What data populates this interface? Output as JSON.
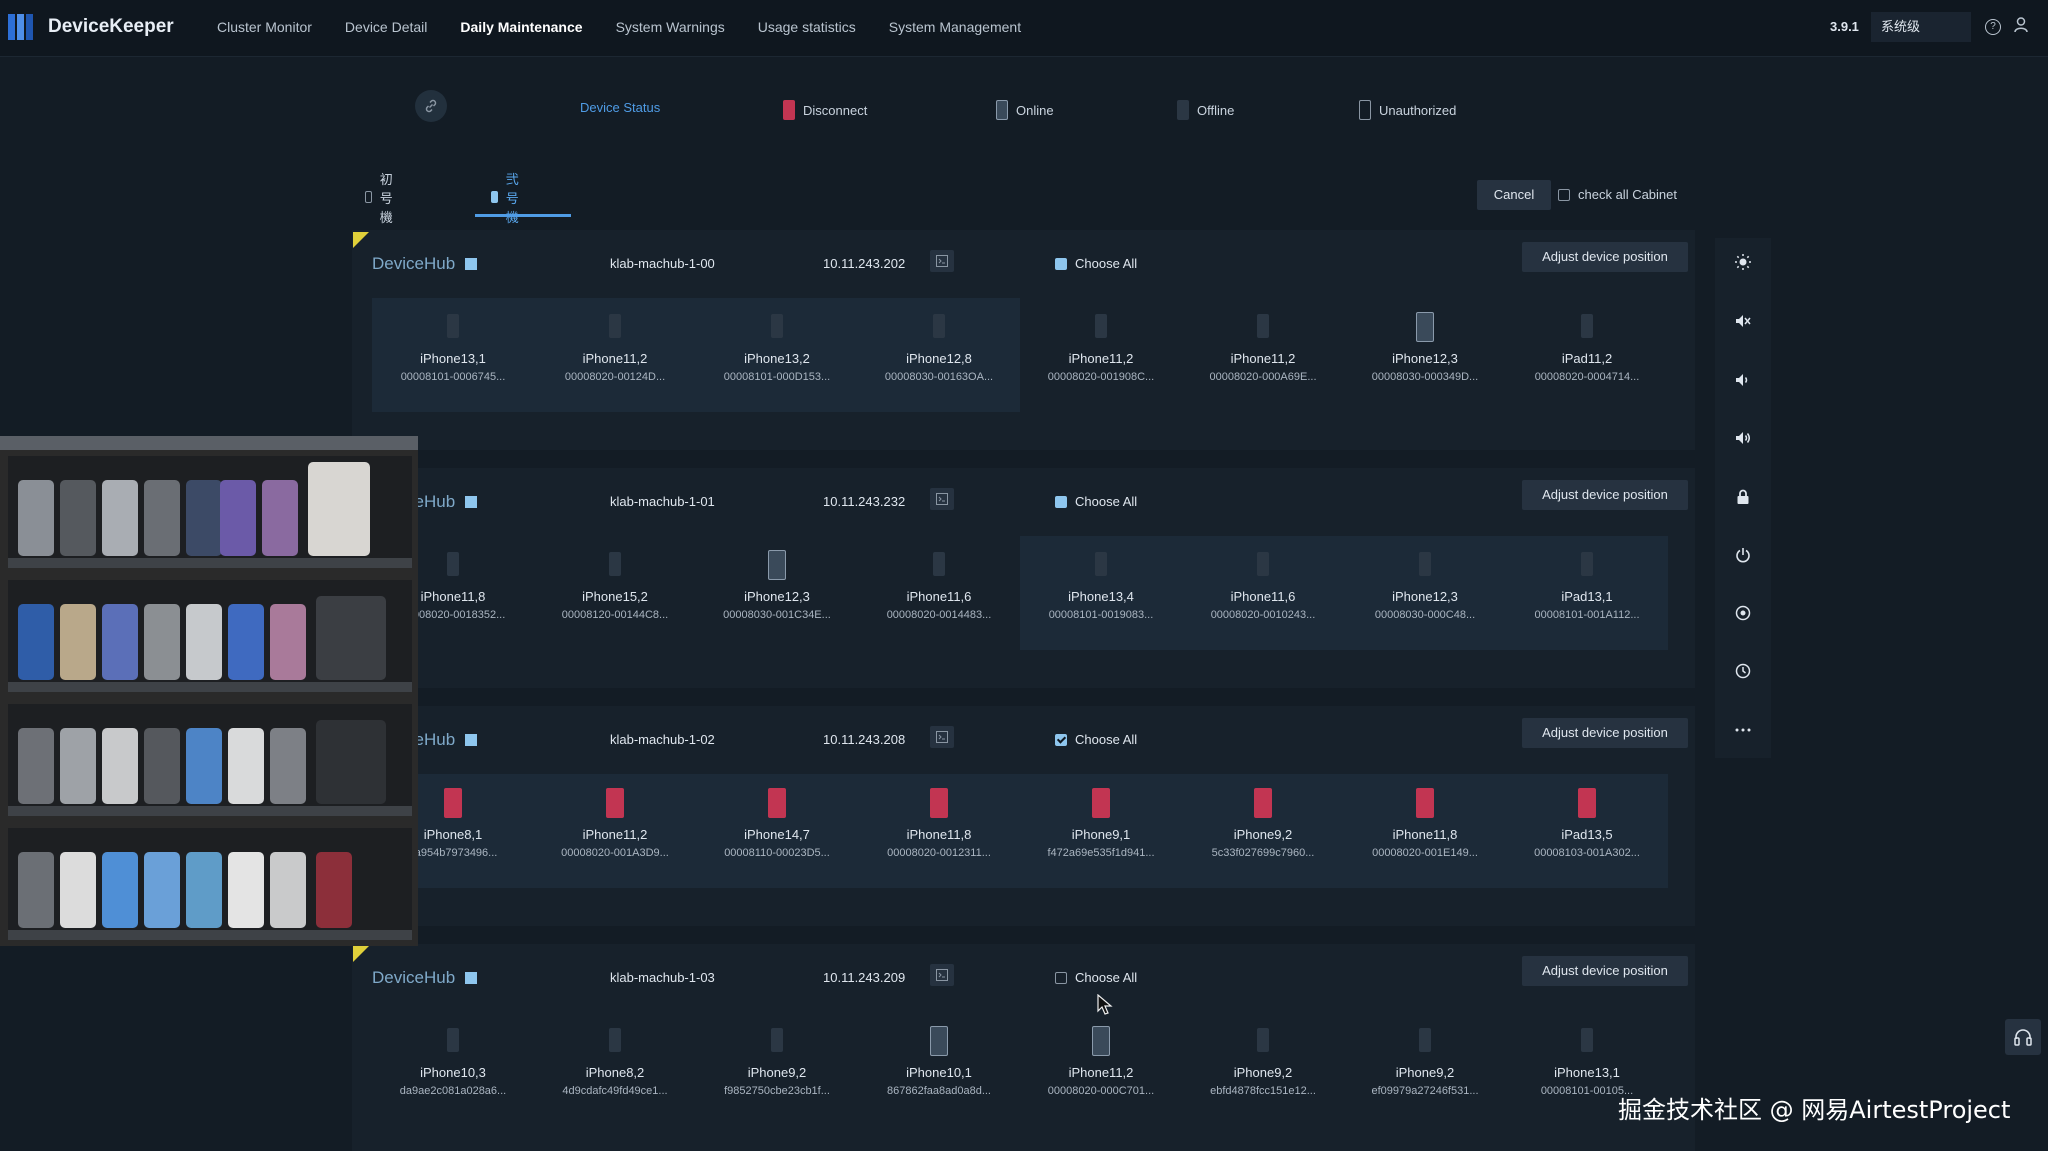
{
  "app": {
    "brand": "DeviceKeeper",
    "version": "3.9.1",
    "env": "系统级"
  },
  "nav": [
    {
      "label": "Cluster Monitor",
      "active": false
    },
    {
      "label": "Device Detail",
      "active": false
    },
    {
      "label": "Daily Maintenance",
      "active": true
    },
    {
      "label": "System Warnings",
      "active": false
    },
    {
      "label": "Usage statistics",
      "active": false
    },
    {
      "label": "System Management",
      "active": false
    }
  ],
  "status_bar": {
    "title": "Device Status",
    "legend": [
      {
        "label": "Disconnect",
        "color": "#c23552"
      },
      {
        "label": "Online",
        "color": "#3a4a5a"
      },
      {
        "label": "Offline",
        "color": "#2b3744"
      },
      {
        "label": "Unauthorized",
        "color": "#131c25"
      }
    ]
  },
  "tabs": [
    {
      "label": "初号機",
      "active": false
    },
    {
      "label": "弐号機",
      "active": true
    }
  ],
  "toolbar": {
    "cancel": "Cancel",
    "check_all": "check all Cabinet"
  },
  "cabinets": [
    {
      "hub": "DeviceHub",
      "host": "klab-machub-1-00",
      "ip": "10.11.243.202",
      "choose_all": "Choose All",
      "choose_state": "partial",
      "adjust": "Adjust device position",
      "devices": [
        {
          "model": "iPhone13,1",
          "serial": "00008101-0006745...",
          "status": "offline"
        },
        {
          "model": "iPhone11,2",
          "serial": "00008020-00124D...",
          "status": "offline"
        },
        {
          "model": "iPhone13,2",
          "serial": "00008101-000D153...",
          "status": "offline"
        },
        {
          "model": "iPhone12,8",
          "serial": "00008030-00163OA...",
          "status": "offline"
        },
        {
          "model": "iPhone11,2",
          "serial": "00008020-001908C...",
          "status": "offline"
        },
        {
          "model": "iPhone11,2",
          "serial": "00008020-000A69E...",
          "status": "offline"
        },
        {
          "model": "iPhone12,3",
          "serial": "00008030-000349D...",
          "status": "online"
        },
        {
          "model": "iPad11,2",
          "serial": "00008020-0004714...",
          "status": "offline"
        }
      ]
    },
    {
      "hub": "DeviceHub",
      "host": "klab-machub-1-01",
      "ip": "10.11.243.232",
      "choose_all": "Choose All",
      "choose_state": "partial",
      "adjust": "Adjust device position",
      "devices": [
        {
          "model": "iPhone11,8",
          "serial": "00008020-0018352...",
          "status": "offline"
        },
        {
          "model": "iPhone15,2",
          "serial": "00008120-00144C8...",
          "status": "offline"
        },
        {
          "model": "iPhone12,3",
          "serial": "00008030-001C34E...",
          "status": "online"
        },
        {
          "model": "iPhone11,6",
          "serial": "00008020-0014483...",
          "status": "offline"
        },
        {
          "model": "iPhone13,4",
          "serial": "00008101-0019083...",
          "status": "offline"
        },
        {
          "model": "iPhone11,6",
          "serial": "00008020-0010243...",
          "status": "offline"
        },
        {
          "model": "iPhone12,3",
          "serial": "00008030-000C48...",
          "status": "offline"
        },
        {
          "model": "iPad13,1",
          "serial": "00008101-001A112...",
          "status": "offline"
        }
      ]
    },
    {
      "hub": "DeviceHub",
      "host": "klab-machub-1-02",
      "ip": "10.11.243.208",
      "choose_all": "Choose All",
      "choose_state": "checked",
      "adjust": "Adjust device position",
      "devices": [
        {
          "model": "iPhone8,1",
          "serial": "3a954b7973496...",
          "status": "disconnect"
        },
        {
          "model": "iPhone11,2",
          "serial": "00008020-001A3D9...",
          "status": "disconnect"
        },
        {
          "model": "iPhone14,7",
          "serial": "00008110-00023D5...",
          "status": "disconnect"
        },
        {
          "model": "iPhone11,8",
          "serial": "00008020-0012311...",
          "status": "disconnect"
        },
        {
          "model": "iPhone9,1",
          "serial": "f472a69e535f1d941...",
          "status": "disconnect"
        },
        {
          "model": "iPhone9,2",
          "serial": "5c33f027699c7960...",
          "status": "disconnect"
        },
        {
          "model": "iPhone11,8",
          "serial": "00008020-001E149...",
          "status": "disconnect"
        },
        {
          "model": "iPad13,5",
          "serial": "00008103-001A302...",
          "status": "disconnect"
        }
      ]
    },
    {
      "hub": "DeviceHub",
      "host": "klab-machub-1-03",
      "ip": "10.11.243.209",
      "choose_all": "Choose All",
      "choose_state": "unchecked",
      "adjust": "Adjust device position",
      "devices": [
        {
          "model": "iPhone10,3",
          "serial": "da9ae2c081a028a6...",
          "status": "offline"
        },
        {
          "model": "iPhone8,2",
          "serial": "4d9cdafc49fd49ce1...",
          "status": "offline"
        },
        {
          "model": "iPhone9,2",
          "serial": "f9852750cbe23cb1f...",
          "status": "offline"
        },
        {
          "model": "iPhone10,1",
          "serial": "867862faa8ad0a8d...",
          "status": "online"
        },
        {
          "model": "iPhone11,2",
          "serial": "00008020-000C701...",
          "status": "online"
        },
        {
          "model": "iPhone9,2",
          "serial": "ebfd4878fcc151e12...",
          "status": "offline"
        },
        {
          "model": "iPhone9,2",
          "serial": "ef09979a27246f531...",
          "status": "offline"
        },
        {
          "model": "iPhone13,1",
          "serial": "00008101-00105...",
          "status": "offline"
        }
      ]
    }
  ],
  "side_tools": [
    "brightness-icon",
    "mute-icon",
    "volume-down-icon",
    "volume-up-icon",
    "lock-icon",
    "power-icon",
    "home-icon",
    "clock-icon",
    "more-icon"
  ],
  "watermark": "掘金技术社区 @ 网易AirtestProject"
}
